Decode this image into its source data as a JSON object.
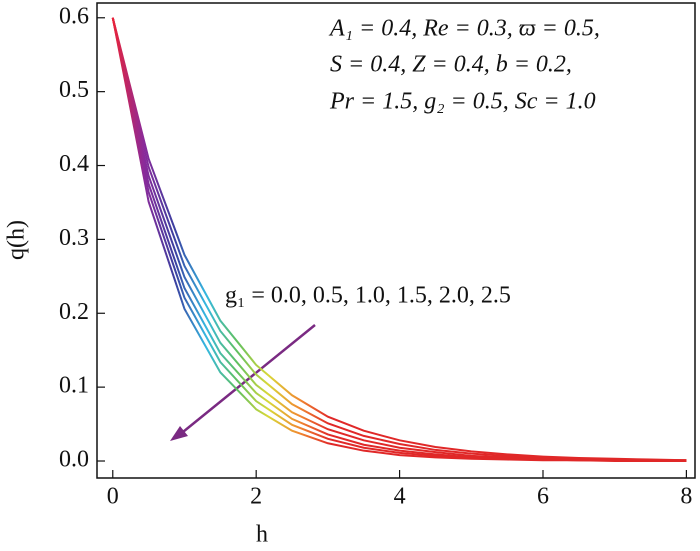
{
  "chart_data": {
    "type": "line",
    "x_label": "h",
    "y_label": "q(h)",
    "annotations": [
      "A₁ = 0.4, Re = 0.3, ϖ = 0.5,",
      "S = 0.4, Z = 0.4, b = 0.2,",
      "Pr = 1.5, g₂ = 0.5, Sc = 1.0",
      "g₁ = 0.0, 0.5, 1.0, 1.5, 2.0, 2.5"
    ],
    "x": [
      0,
      0.5,
      1,
      1.5,
      2,
      2.5,
      3,
      3.5,
      4,
      4.5,
      5,
      5.5,
      6,
      6.5,
      7,
      7.5,
      8
    ],
    "colors": [
      "#e8233a",
      "#8a2a9a",
      "#3a3fa0",
      "#35b8e0",
      "#5fc060",
      "#d8d838",
      "#f08a30",
      "#e02828"
    ],
    "series": [
      {
        "values": [
          0.6,
          0.409,
          0.279,
          0.19,
          0.13,
          0.089,
          0.06,
          0.041,
          0.028,
          0.019,
          0.013,
          0.009,
          0.006,
          0.004,
          0.003,
          0.002,
          0.001
        ]
      },
      {
        "values": [
          0.6,
          0.398,
          0.264,
          0.176,
          0.117,
          0.077,
          0.051,
          0.034,
          0.023,
          0.015,
          0.01,
          0.007,
          0.004,
          0.003,
          0.002,
          0.001,
          0.001
        ]
      },
      {
        "values": [
          0.6,
          0.386,
          0.249,
          0.16,
          0.103,
          0.066,
          0.043,
          0.028,
          0.018,
          0.012,
          0.007,
          0.005,
          0.003,
          0.002,
          0.001,
          0.001,
          0.001
        ]
      },
      {
        "values": [
          0.6,
          0.375,
          0.234,
          0.146,
          0.092,
          0.057,
          0.036,
          0.022,
          0.014,
          0.009,
          0.005,
          0.003,
          0.002,
          0.001,
          0.001,
          0.001,
          0
        ]
      },
      {
        "values": [
          0.6,
          0.364,
          0.221,
          0.134,
          0.081,
          0.049,
          0.03,
          0.018,
          0.011,
          0.007,
          0.004,
          0.003,
          0.002,
          0.001,
          0.001,
          0,
          0
        ]
      },
      {
        "values": [
          0.6,
          0.351,
          0.206,
          0.12,
          0.07,
          0.041,
          0.024,
          0.014,
          0.008,
          0.005,
          0.003,
          0.002,
          0.001,
          0.001,
          0,
          0,
          0
        ]
      }
    ],
    "xlim": [
      -0.22,
      8.12
    ],
    "ylim": [
      -0.023,
      0.62
    ],
    "xticks": [
      0,
      2,
      4,
      6,
      8
    ],
    "yticks": [
      {
        "value": 0,
        "label": "0.0"
      },
      0.1,
      0.2,
      0.3,
      0.4,
      0.5,
      0.6
    ]
  }
}
